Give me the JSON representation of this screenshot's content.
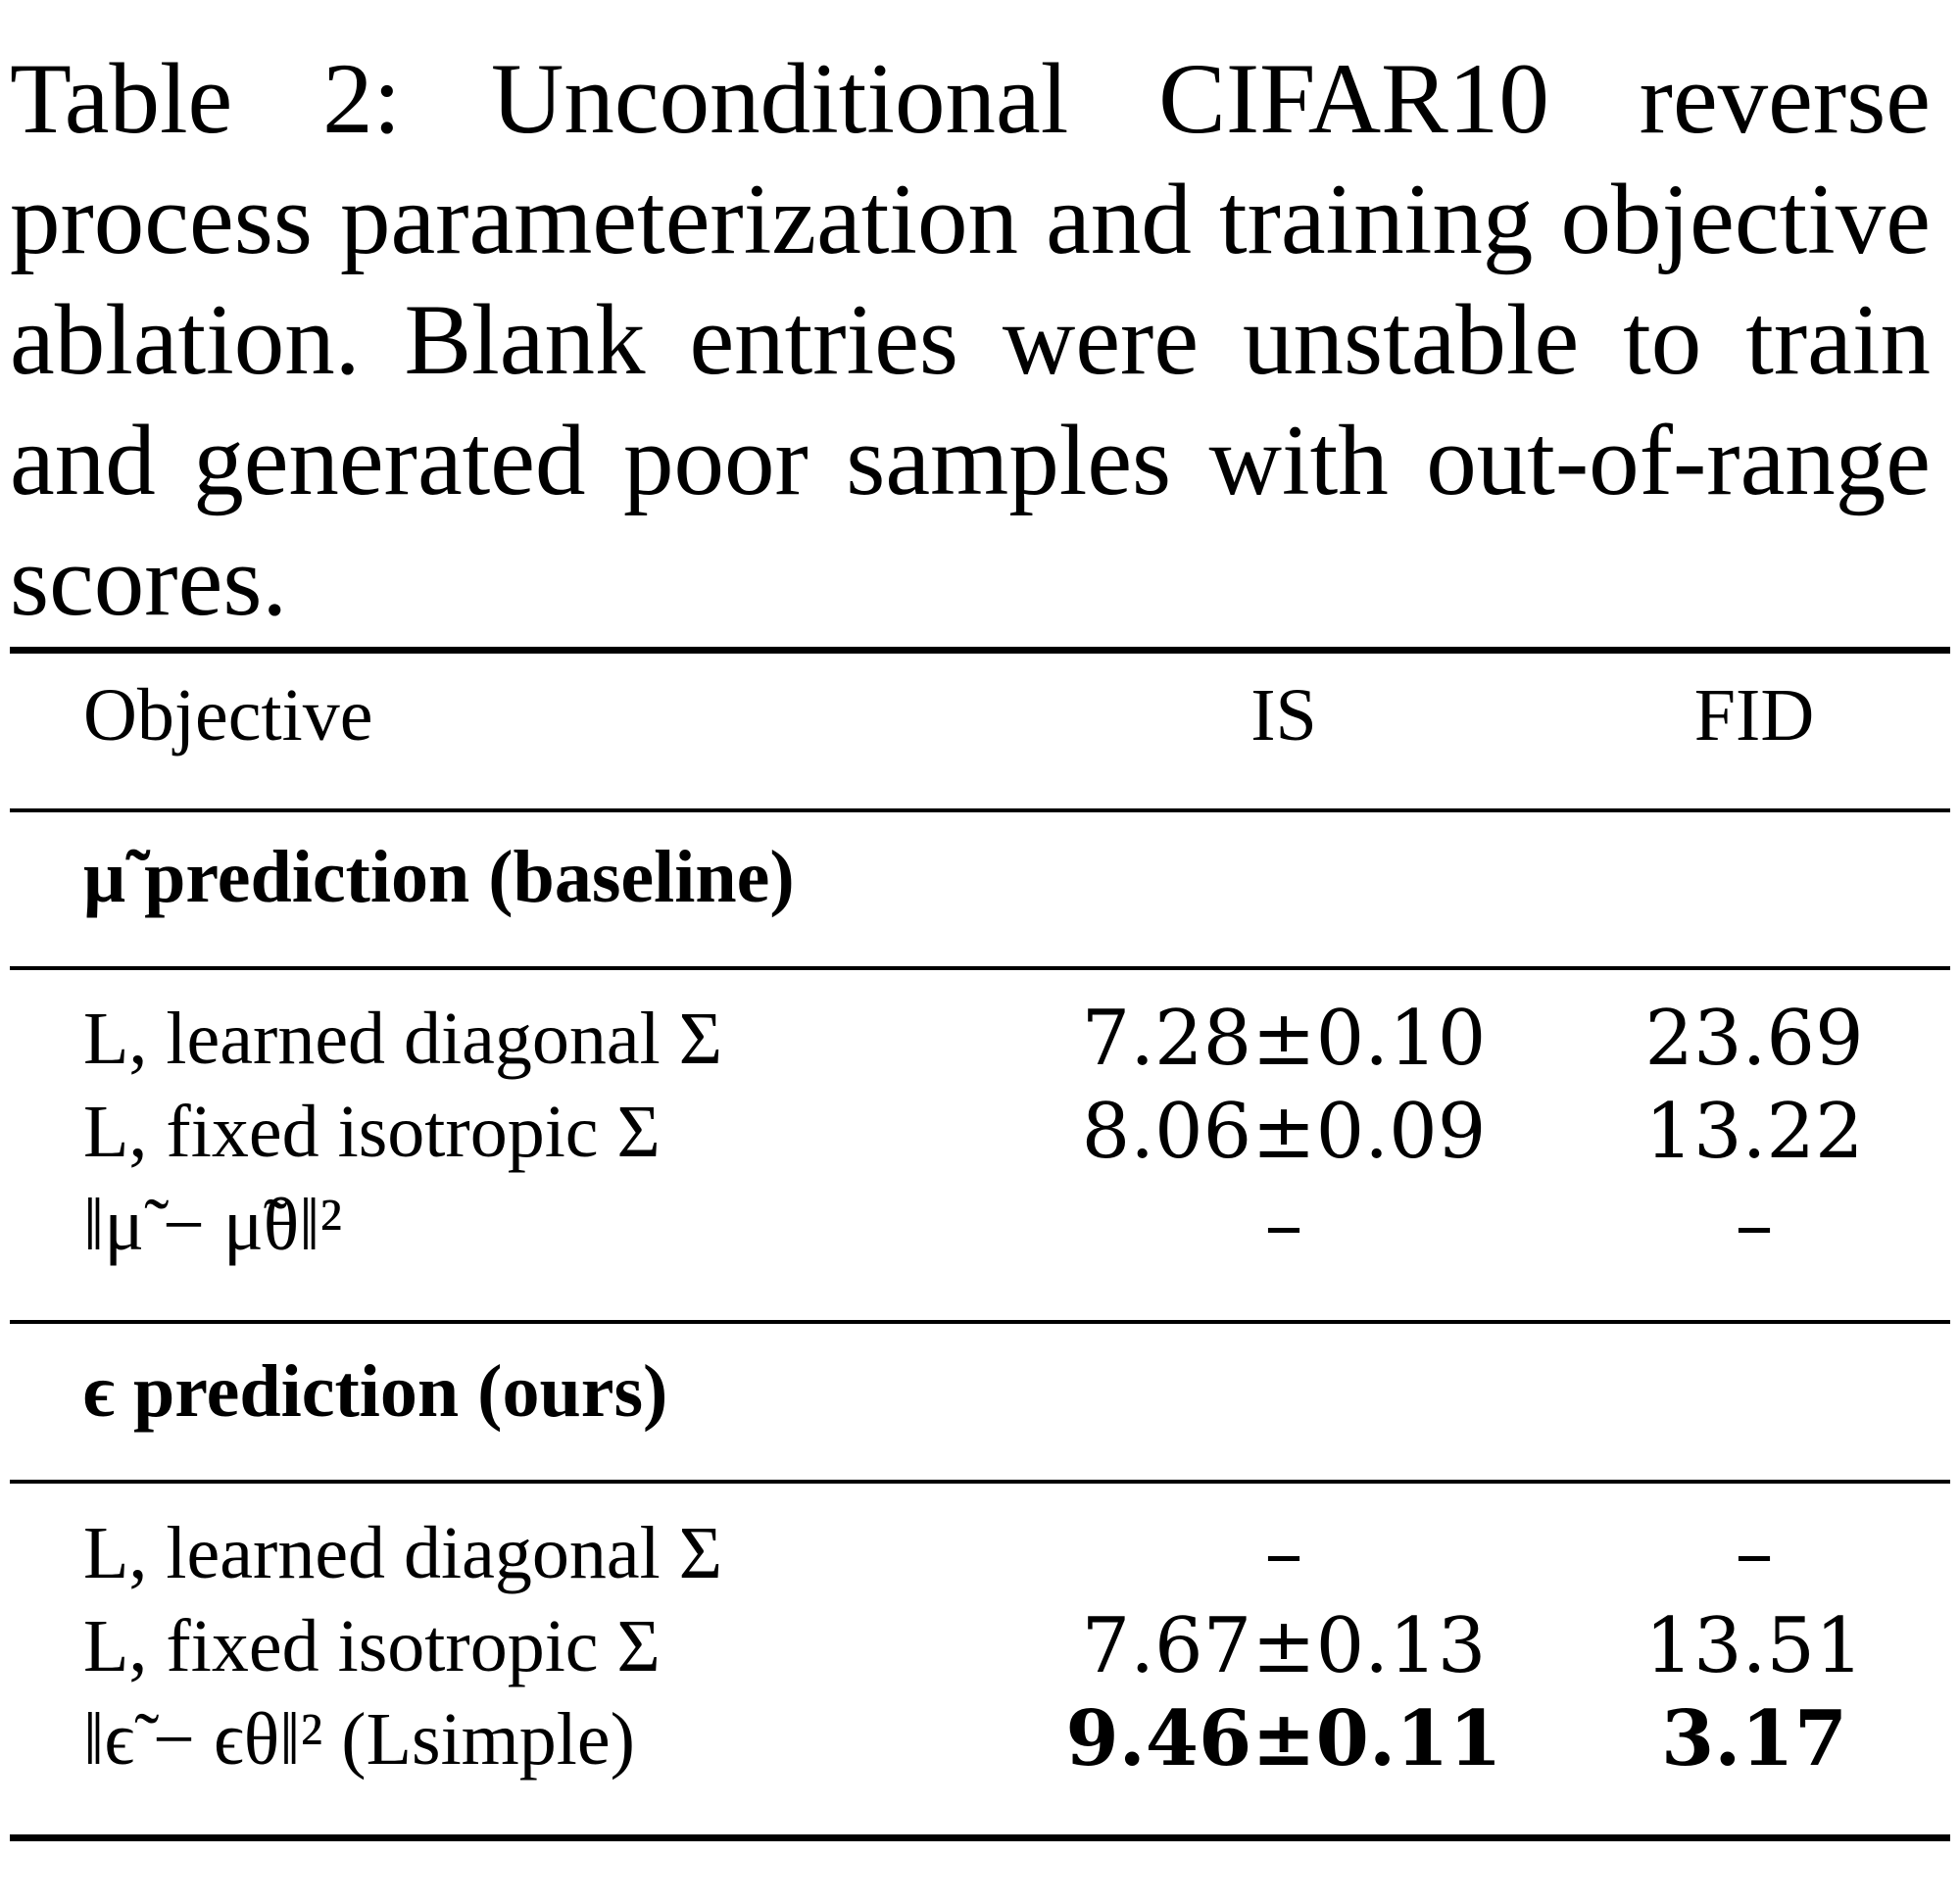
{
  "caption": "Table 2: Unconditional CIFAR10 reverse process parameterization and training objective ablation. Blank entries were unstable to train and generated poor samples with out-of-range scores.",
  "table": {
    "headers": {
      "objective": "Objective",
      "is": "IS",
      "fid": "FID"
    },
    "sections": [
      {
        "title": "μ̃ prediction (baseline)",
        "rows": [
          {
            "objective": "L, learned diagonal Σ",
            "is": "7.28±0.10",
            "fid": "23.69"
          },
          {
            "objective": "L, fixed isotropic Σ",
            "is": "8.06±0.09",
            "fid": "13.22"
          },
          {
            "objective": "‖μ̃ − μ̃θ‖²",
            "is": "–",
            "fid": "–"
          }
        ]
      },
      {
        "title": "ϵ prediction (ours)",
        "rows": [
          {
            "objective": "L, learned diagonal Σ",
            "is": "–",
            "fid": "–"
          },
          {
            "objective": "L, fixed isotropic Σ",
            "is": "7.67±0.13",
            "fid": "13.51"
          },
          {
            "objective": "‖ϵ̃ − ϵθ‖² (Lsimple)",
            "is": "9.46±0.11",
            "fid": "3.17",
            "bold_values": true
          }
        ]
      }
    ]
  }
}
